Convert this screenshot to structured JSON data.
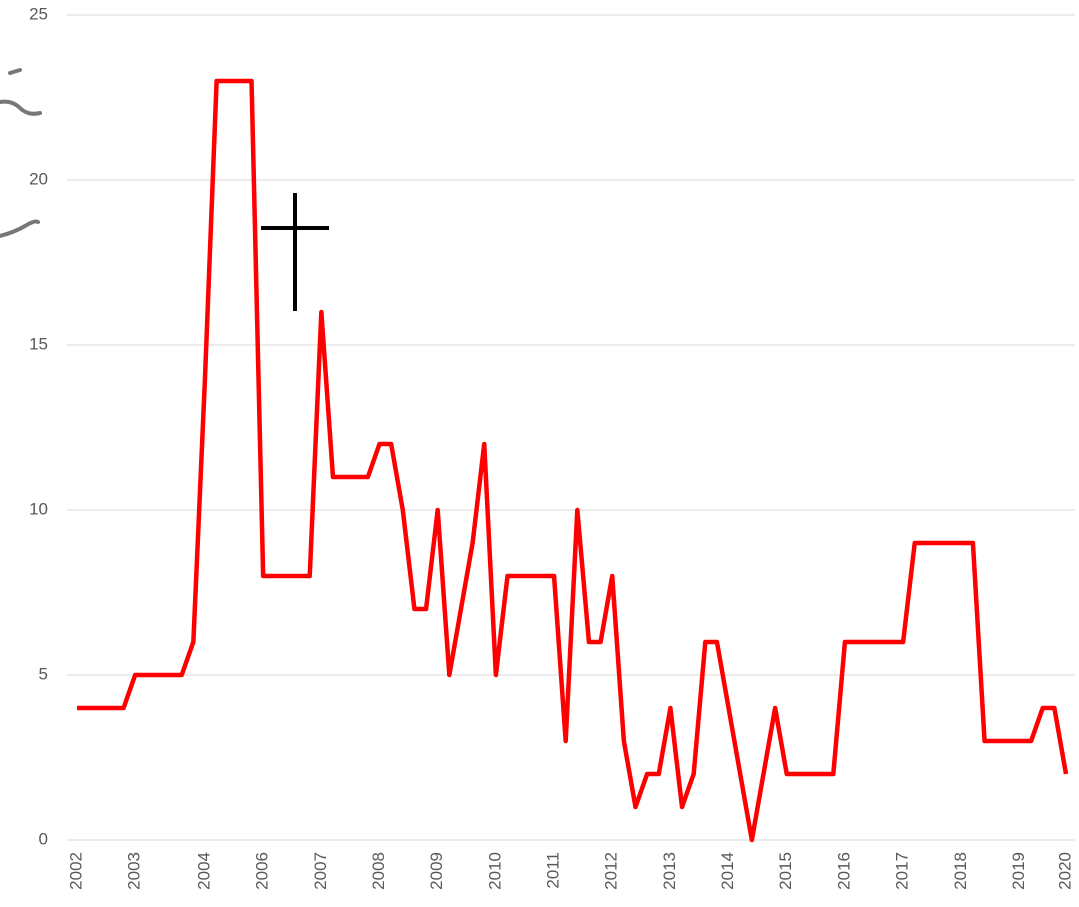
{
  "chart_data": {
    "type": "line",
    "categories": [
      "2002",
      null,
      null,
      null,
      null,
      "2003",
      null,
      null,
      null,
      null,
      null,
      "2004",
      null,
      null,
      null,
      null,
      "2006",
      null,
      null,
      null,
      null,
      "2007",
      null,
      null,
      null,
      null,
      "2008",
      null,
      null,
      null,
      null,
      "2009",
      null,
      null,
      null,
      null,
      "2010",
      null,
      null,
      null,
      null,
      "2011",
      null,
      null,
      null,
      null,
      "2012",
      null,
      null,
      null,
      null,
      "2013",
      null,
      null,
      null,
      null,
      "2014",
      null,
      null,
      null,
      null,
      "2015",
      null,
      null,
      null,
      null,
      "2016",
      null,
      null,
      null,
      null,
      "2017",
      null,
      null,
      null,
      null,
      "2018",
      null,
      null,
      null,
      null,
      "2019",
      null,
      null,
      null,
      "2020"
    ],
    "series": [
      {
        "color": "#ff0000",
        "values": [
          4,
          4,
          4,
          4,
          4,
          5,
          5,
          5,
          5,
          5,
          6,
          14,
          23,
          23,
          23,
          23,
          8,
          8,
          8,
          8,
          8,
          16,
          11,
          11,
          11,
          11,
          12,
          12,
          10,
          7,
          7,
          10,
          5,
          7,
          9,
          12,
          5,
          8,
          8,
          8,
          8,
          8,
          3,
          10,
          6,
          6,
          8,
          3,
          1,
          2,
          2,
          4,
          1,
          2,
          6,
          6,
          4,
          2,
          0,
          2,
          4,
          2,
          2,
          2,
          2,
          2,
          6,
          6,
          6,
          6,
          6,
          6,
          9,
          9,
          9,
          9,
          9,
          9,
          3,
          3,
          3,
          3,
          3,
          4,
          4,
          2
        ]
      }
    ],
    "ylim": [
      0,
      25
    ],
    "yticks": [
      0,
      5,
      10,
      15,
      20,
      25
    ],
    "grid": true
  }
}
